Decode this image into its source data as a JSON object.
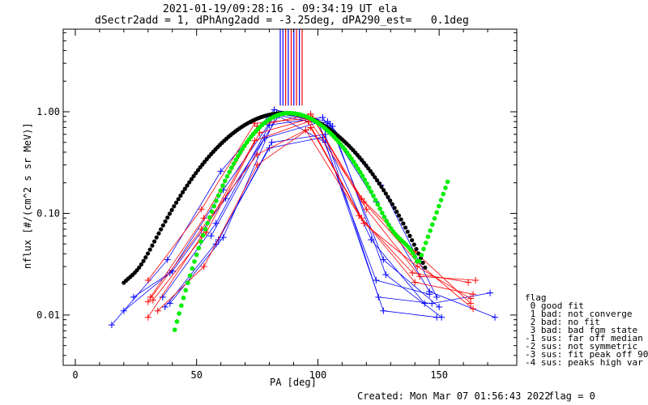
{
  "header": {
    "title_line1": "2021-01-19/09:28:16 - 09:34:19 UT ela",
    "title_line2": "dSectr2add = 1, dPhAng2add = -3.25deg, dPA290_est=   0.1deg"
  },
  "footer": {
    "created": "Created: Mon Mar 07 01:56:43 2022",
    "flag": "flag = 0"
  },
  "legend": {
    "title": "flag",
    "entries": [
      " 0 good fit",
      " 1 bad: not converge",
      " 2 bad: no fit",
      " 3 bad: bad fgm state",
      "-1 sus: far off median",
      "-2 sus: not symmetric",
      "-3 sus: fit peak off 90",
      "-4 sus: peaks high var"
    ]
  },
  "colors": {
    "red": "#ff0000",
    "blue": "#0000ff",
    "green": "#00ee00",
    "black": "#000000"
  },
  "chart_data": {
    "type": "line",
    "xlabel": "PA [deg]",
    "ylabel": "nflux [#/(cm^2 s sr MeV)]",
    "xlim": [
      -5,
      182
    ],
    "ylim": [
      0.0032,
      6.5
    ],
    "yscale": "log",
    "xticks": [
      0,
      50,
      100,
      150
    ],
    "xtick_labels": [
      "0",
      "50",
      "100",
      "150"
    ],
    "yticks": [
      0.01,
      0.1,
      1.0
    ],
    "ytick_labels": [
      "0.01",
      "0.10",
      "1.00"
    ],
    "vertical_lines": [
      {
        "x": 84.5,
        "color": "blue"
      },
      {
        "x": 85.6,
        "color": "blue"
      },
      {
        "x": 86.7,
        "color": "red"
      },
      {
        "x": 87.8,
        "color": "blue"
      },
      {
        "x": 89.0,
        "color": "red"
      },
      {
        "x": 90.1,
        "color": "blue"
      },
      {
        "x": 91.2,
        "color": "red"
      },
      {
        "x": 92.4,
        "color": "blue"
      },
      {
        "x": 93.5,
        "color": "red"
      }
    ],
    "series": [
      {
        "color": "blue",
        "x": [
          15,
          38,
          60,
          82,
          104,
          126,
          149
        ],
        "y": [
          0.008,
          0.035,
          0.26,
          1.05,
          0.8,
          0.19,
          0.015
        ]
      },
      {
        "color": "blue",
        "x": [
          20,
          39,
          61,
          83,
          105,
          127,
          150
        ],
        "y": [
          0.011,
          0.026,
          0.17,
          0.97,
          0.76,
          0.035,
          0.012
        ]
      },
      {
        "color": "blue",
        "x": [
          24,
          40,
          62,
          84,
          106,
          128,
          151
        ],
        "y": [
          0.015,
          0.027,
          0.14,
          0.92,
          0.72,
          0.025,
          0.0095
        ]
      },
      {
        "color": "blue",
        "x": [
          36,
          58,
          80,
          102,
          124,
          146,
          173
        ],
        "y": [
          0.015,
          0.08,
          0.74,
          0.88,
          0.13,
          0.017,
          0.0095
        ]
      },
      {
        "color": "blue",
        "x": [
          37,
          59,
          81,
          103,
          125,
          147,
          171
        ],
        "y": [
          0.012,
          0.055,
          0.5,
          0.6,
          0.015,
          0.013,
          0.0165
        ]
      },
      {
        "color": "blue",
        "x": [
          39,
          61,
          83,
          103,
          127,
          149
        ],
        "y": [
          0.013,
          0.058,
          0.93,
          0.5,
          0.011,
          0.0095
        ]
      },
      {
        "color": "blue",
        "x": [
          56,
          78,
          100,
          122,
          144
        ],
        "y": [
          0.06,
          0.55,
          0.78,
          0.055,
          0.013
        ]
      },
      {
        "color": "blue",
        "x": [
          58,
          80,
          102,
          124,
          146
        ],
        "y": [
          0.05,
          0.44,
          0.56,
          0.022,
          0.016
        ]
      },
      {
        "color": "red",
        "x": [
          30,
          52,
          74,
          96,
          118,
          140,
          163
        ],
        "y": [
          0.022,
          0.11,
          0.77,
          0.86,
          0.14,
          0.042,
          0.013
        ]
      },
      {
        "color": "red",
        "x": [
          31,
          53,
          75,
          97,
          119,
          141,
          164
        ],
        "y": [
          0.015,
          0.09,
          0.72,
          0.95,
          0.13,
          0.033,
          0.0115
        ]
      },
      {
        "color": "red",
        "x": [
          32,
          54,
          76,
          98,
          120,
          142,
          165
        ],
        "y": [
          0.014,
          0.065,
          0.62,
          0.87,
          0.11,
          0.024,
          0.022
        ]
      },
      {
        "color": "red",
        "x": [
          30,
          52,
          74,
          96,
          118,
          140,
          164
        ],
        "y": [
          0.0095,
          0.06,
          0.52,
          0.8,
          0.09,
          0.021,
          0.016
        ]
      },
      {
        "color": "red",
        "x": [
          34,
          53,
          75,
          97,
          119,
          141,
          163
        ],
        "y": [
          0.011,
          0.03,
          0.3,
          0.7,
          0.08,
          0.03,
          0.0145
        ]
      },
      {
        "color": "red",
        "x": [
          30,
          52,
          75,
          95,
          117,
          139,
          162
        ],
        "y": [
          0.0135,
          0.07,
          0.38,
          0.66,
          0.095,
          0.026,
          0.021
        ]
      }
    ],
    "fit_black": {
      "color": "black",
      "x_start": 20,
      "x_end": 145,
      "peak_x": 86,
      "peak_y": 0.97,
      "sigma": 22
    },
    "fit_green": {
      "color": "green",
      "x_start": 41,
      "x_end": 160,
      "peak_x": 88,
      "peak_y": 0.97
    }
  }
}
